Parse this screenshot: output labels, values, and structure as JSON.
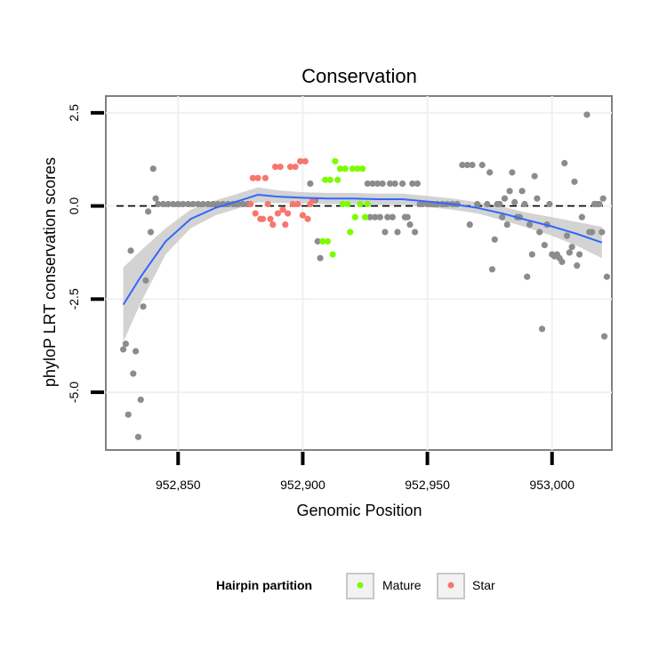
{
  "chart_data": {
    "type": "scatter",
    "title": "Conservation",
    "xlabel": "Genomic Position",
    "ylabel": "phyloP LRT conservation scores",
    "xlim": [
      952821,
      953024
    ],
    "ylim": [
      -6.55,
      2.95
    ],
    "x_ticks": [
      {
        "value": 952850,
        "label": "952,850"
      },
      {
        "value": 952900,
        "label": "952,900"
      },
      {
        "value": 952950,
        "label": "952,950"
      },
      {
        "value": 953000,
        "label": "953,000"
      }
    ],
    "y_ticks": [
      {
        "value": 2.5,
        "label": "2.5"
      },
      {
        "value": 0,
        "label": "0.0"
      },
      {
        "value": -2.5,
        "label": "-2.5"
      },
      {
        "value": -5,
        "label": "-5.0"
      }
    ],
    "reference_line": {
      "y": 0,
      "style": "dashed"
    },
    "legend": {
      "title": "Hairpin partition",
      "position": "bottom",
      "entries": [
        {
          "name": "Mature",
          "color": "#7cfc00"
        },
        {
          "name": "Star",
          "color": "#f8766d"
        }
      ]
    },
    "colors": {
      "other": "#8c8c8c",
      "mature": "#7cfc00",
      "star": "#f8766d",
      "smooth": "#3366ff",
      "ribbon": "#c4c4c4"
    },
    "series": [
      {
        "name": "Other",
        "points": [
          [
            952828,
            -3.85
          ],
          [
            952829,
            -3.7
          ],
          [
            952830,
            -5.6
          ],
          [
            952831,
            -1.2
          ],
          [
            952832,
            -4.5
          ],
          [
            952833,
            -3.9
          ],
          [
            952834,
            -6.2
          ],
          [
            952835,
            -5.2
          ],
          [
            952836,
            -2.7
          ],
          [
            952837,
            -2.0
          ],
          [
            952838,
            -0.15
          ],
          [
            952839,
            -0.7
          ],
          [
            952840,
            1.0
          ],
          [
            952841,
            0.2
          ],
          [
            952842,
            0.05
          ],
          [
            952844,
            0.05
          ],
          [
            952846,
            0.05
          ],
          [
            952848,
            0.05
          ],
          [
            952850,
            0.05
          ],
          [
            952852,
            0.05
          ],
          [
            952854,
            0.05
          ],
          [
            952856,
            0.05
          ],
          [
            952858,
            0.05
          ],
          [
            952860,
            0.05
          ],
          [
            952862,
            0.05
          ],
          [
            952864,
            0.05
          ],
          [
            952866,
            0.05
          ],
          [
            952868,
            0.05
          ],
          [
            952870,
            0.05
          ],
          [
            952872,
            0.05
          ],
          [
            952874,
            0.05
          ],
          [
            952876,
            0.05
          ],
          [
            952878,
            0.05
          ],
          [
            952903,
            0.6
          ],
          [
            952905,
            0.15
          ],
          [
            952906,
            -0.95
          ],
          [
            952907,
            -1.4
          ],
          [
            952926,
            0.6
          ],
          [
            952927,
            -0.3
          ],
          [
            952928,
            0.6
          ],
          [
            952929,
            -0.3
          ],
          [
            952930,
            0.6
          ],
          [
            952931,
            -0.3
          ],
          [
            952932,
            0.6
          ],
          [
            952933,
            -0.7
          ],
          [
            952934,
            -0.3
          ],
          [
            952935,
            0.6
          ],
          [
            952936,
            -0.3
          ],
          [
            952937,
            0.6
          ],
          [
            952938,
            -0.7
          ],
          [
            952940,
            0.6
          ],
          [
            952941,
            -0.3
          ],
          [
            952942,
            -0.3
          ],
          [
            952943,
            -0.5
          ],
          [
            952944,
            0.6
          ],
          [
            952945,
            -0.7
          ],
          [
            952946,
            0.6
          ],
          [
            952947,
            0.05
          ],
          [
            952948,
            0.05
          ],
          [
            952950,
            0.05
          ],
          [
            952952,
            0.05
          ],
          [
            952954,
            0.05
          ],
          [
            952956,
            0.05
          ],
          [
            952958,
            0.05
          ],
          [
            952960,
            0.05
          ],
          [
            952962,
            0.05
          ],
          [
            952964,
            1.1
          ],
          [
            952966,
            1.1
          ],
          [
            952967,
            -0.5
          ],
          [
            952968,
            1.1
          ],
          [
            952970,
            0.05
          ],
          [
            952972,
            1.1
          ],
          [
            952974,
            0.05
          ],
          [
            952975,
            0.9
          ],
          [
            952976,
            -1.7
          ],
          [
            952977,
            -0.9
          ],
          [
            952978,
            0.05
          ],
          [
            952979,
            0.05
          ],
          [
            952980,
            -0.3
          ],
          [
            952981,
            0.2
          ],
          [
            952982,
            -0.5
          ],
          [
            952983,
            0.4
          ],
          [
            952984,
            0.9
          ],
          [
            952985,
            0.1
          ],
          [
            952986,
            -0.3
          ],
          [
            952987,
            -0.3
          ],
          [
            952988,
            0.4
          ],
          [
            952989,
            0.05
          ],
          [
            952990,
            -1.9
          ],
          [
            952991,
            -0.5
          ],
          [
            952992,
            -1.3
          ],
          [
            952993,
            0.8
          ],
          [
            952994,
            0.2
          ],
          [
            952995,
            -0.7
          ],
          [
            952996,
            -3.3
          ],
          [
            952997,
            -1.05
          ],
          [
            952998,
            -0.5
          ],
          [
            952999,
            0.05
          ],
          [
            953000,
            -1.3
          ],
          [
            953001,
            -1.35
          ],
          [
            953002,
            -1.3
          ],
          [
            953003,
            -1.4
          ],
          [
            953004,
            -1.5
          ],
          [
            953005,
            1.15
          ],
          [
            953006,
            -0.8
          ],
          [
            953007,
            -1.25
          ],
          [
            953008,
            -1.1
          ],
          [
            953009,
            0.65
          ],
          [
            953010,
            -1.6
          ],
          [
            953011,
            -1.3
          ],
          [
            953012,
            -0.3
          ],
          [
            953014,
            2.45
          ],
          [
            953015,
            -0.7
          ],
          [
            953016,
            -0.7
          ],
          [
            953017,
            0.05
          ],
          [
            953018,
            0.05
          ],
          [
            953019,
            0.05
          ],
          [
            953020,
            -0.7
          ],
          [
            953020.5,
            0.2
          ],
          [
            953021,
            -3.5
          ],
          [
            953022,
            -1.9
          ]
        ]
      },
      {
        "name": "Mature",
        "points": [
          [
            952908,
            -0.95
          ],
          [
            952909,
            0.7
          ],
          [
            952910,
            -0.95
          ],
          [
            952911,
            0.7
          ],
          [
            952912,
            -1.3
          ],
          [
            952913,
            1.2
          ],
          [
            952914,
            0.7
          ],
          [
            952915,
            1.0
          ],
          [
            952916,
            0.05
          ],
          [
            952917,
            1.0
          ],
          [
            952918,
            0.05
          ],
          [
            952919,
            -0.7
          ],
          [
            952920,
            1.0
          ],
          [
            952921,
            -0.3
          ],
          [
            952922,
            1.0
          ],
          [
            952923,
            0.05
          ],
          [
            952924,
            1.0
          ],
          [
            952925,
            -0.3
          ],
          [
            952926,
            0.05
          ]
        ]
      },
      {
        "name": "Star",
        "points": [
          [
            952879,
            0.05
          ],
          [
            952880,
            0.75
          ],
          [
            952881,
            -0.2
          ],
          [
            952882,
            0.75
          ],
          [
            952883,
            -0.35
          ],
          [
            952884,
            -0.35
          ],
          [
            952885,
            0.75
          ],
          [
            952886,
            0.05
          ],
          [
            952887,
            -0.35
          ],
          [
            952888,
            -0.5
          ],
          [
            952889,
            1.05
          ],
          [
            952890,
            -0.2
          ],
          [
            952891,
            1.05
          ],
          [
            952892,
            -0.1
          ],
          [
            952893,
            -0.5
          ],
          [
            952894,
            -0.2
          ],
          [
            952895,
            1.05
          ],
          [
            952896,
            0.05
          ],
          [
            952897,
            1.05
          ],
          [
            952898,
            0.05
          ],
          [
            952899,
            1.2
          ],
          [
            952900,
            -0.25
          ],
          [
            952901,
            1.2
          ],
          [
            952902,
            -0.35
          ],
          [
            952903,
            0.05
          ],
          [
            952904,
            0.15
          ]
        ]
      }
    ],
    "smooth": {
      "points": [
        [
          952828,
          -2.65
        ],
        [
          952835,
          -1.9
        ],
        [
          952845,
          -0.95
        ],
        [
          952855,
          -0.35
        ],
        [
          952865,
          -0.05
        ],
        [
          952875,
          0.15
        ],
        [
          952882,
          0.3
        ],
        [
          952890,
          0.25
        ],
        [
          952900,
          0.22
        ],
        [
          952910,
          0.2
        ],
        [
          952920,
          0.2
        ],
        [
          952930,
          0.18
        ],
        [
          952940,
          0.18
        ],
        [
          952950,
          0.12
        ],
        [
          952960,
          0.05
        ],
        [
          952970,
          -0.05
        ],
        [
          952980,
          -0.2
        ],
        [
          952990,
          -0.38
        ],
        [
          953000,
          -0.55
        ],
        [
          953010,
          -0.75
        ],
        [
          953020,
          -0.98
        ]
      ],
      "se_width": [
        1.0,
        0.7,
        0.35,
        0.25,
        0.2,
        0.2,
        0.2,
        0.17,
        0.15,
        0.15,
        0.15,
        0.15,
        0.15,
        0.15,
        0.15,
        0.15,
        0.18,
        0.2,
        0.25,
        0.32,
        0.42
      ]
    }
  }
}
